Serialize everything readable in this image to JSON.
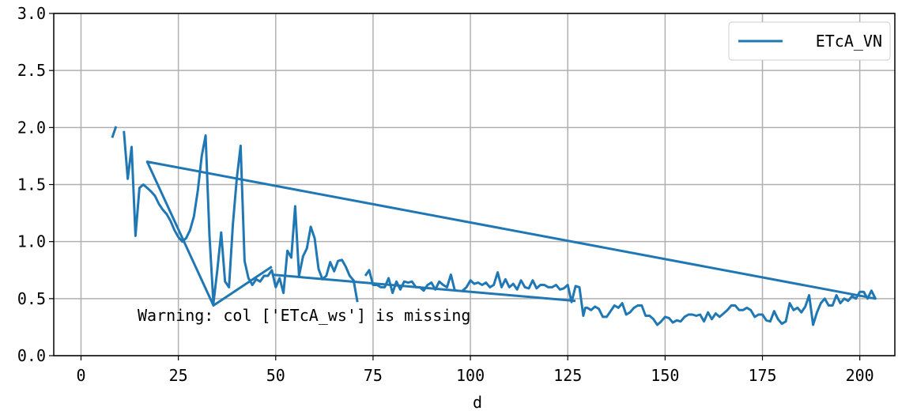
{
  "chart_data": {
    "type": "line",
    "xlabel": "d",
    "ylabel": "",
    "xlim": [
      -7,
      209
    ],
    "ylim": [
      0,
      3
    ],
    "x_ticks": [
      0,
      25,
      50,
      75,
      100,
      125,
      150,
      175,
      200
    ],
    "y_ticks": [
      0.0,
      0.5,
      1.0,
      1.5,
      2.0,
      2.5,
      3.0
    ],
    "x_tick_labels": [
      "0",
      "25",
      "50",
      "75",
      "100",
      "125",
      "150",
      "175",
      "200"
    ],
    "y_tick_labels": [
      "0.0",
      "0.5",
      "1.0",
      "1.5",
      "2.0",
      "2.5",
      "3.0"
    ],
    "grid": true,
    "legend_position": "top-right",
    "annotation": "Warning: col ['ETcA_ws'] is missing",
    "series": [
      {
        "name": "ETcA_VN",
        "color": "#1f77b4",
        "segments": [
          [
            [
              8,
              1.91
            ],
            [
              9,
              2.01
            ]
          ],
          [
            [
              11,
              1.97
            ],
            [
              12,
              1.55
            ],
            [
              13,
              1.83
            ],
            [
              14,
              1.05
            ],
            [
              15,
              1.47
            ],
            [
              16,
              1.5
            ],
            [
              17,
              1.47
            ],
            [
              18,
              1.44
            ],
            [
              19,
              1.4
            ],
            [
              20,
              1.33
            ],
            [
              21,
              1.28
            ],
            [
              22,
              1.24
            ],
            [
              23,
              1.18
            ],
            [
              24,
              1.1
            ],
            [
              25,
              1.04
            ],
            [
              26,
              1.0
            ],
            [
              27,
              1.03
            ],
            [
              28,
              1.1
            ],
            [
              29,
              1.22
            ],
            [
              30,
              1.45
            ],
            [
              31,
              1.75
            ],
            [
              32,
              1.93
            ],
            [
              33,
              1.05
            ],
            [
              34,
              0.46
            ],
            [
              35,
              0.75
            ],
            [
              36,
              1.08
            ],
            [
              37,
              0.65
            ],
            [
              38,
              0.6
            ],
            [
              39,
              1.15
            ],
            [
              40,
              1.55
            ],
            [
              41,
              1.84
            ],
            [
              42,
              0.83
            ],
            [
              43,
              0.68
            ],
            [
              44,
              0.62
            ],
            [
              45,
              0.67
            ],
            [
              46,
              0.65
            ],
            [
              47,
              0.7
            ],
            [
              48,
              0.7
            ],
            [
              49,
              0.75
            ],
            [
              50,
              0.6
            ],
            [
              51,
              0.68
            ],
            [
              52,
              0.55
            ],
            [
              53,
              0.92
            ],
            [
              54,
              0.86
            ],
            [
              55,
              1.31
            ],
            [
              56,
              0.7
            ],
            [
              57,
              0.87
            ],
            [
              58,
              0.94
            ],
            [
              59,
              1.13
            ],
            [
              60,
              1.03
            ],
            [
              61,
              0.76
            ],
            [
              62,
              0.67
            ],
            [
              63,
              0.7
            ],
            [
              64,
              0.82
            ],
            [
              65,
              0.74
            ],
            [
              66,
              0.83
            ],
            [
              67,
              0.84
            ],
            [
              68,
              0.78
            ],
            [
              69,
              0.7
            ],
            [
              70,
              0.66
            ],
            [
              71,
              0.47
            ]
          ],
          [
            [
              73,
              0.7
            ],
            [
              74,
              0.75
            ],
            [
              75,
              0.62
            ],
            [
              76,
              0.62
            ],
            [
              77,
              0.6
            ],
            [
              78,
              0.6
            ],
            [
              79,
              0.68
            ],
            [
              80,
              0.55
            ],
            [
              81,
              0.65
            ],
            [
              82,
              0.58
            ],
            [
              83,
              0.65
            ],
            [
              84,
              0.64
            ],
            [
              85,
              0.65
            ],
            [
              86,
              0.6
            ],
            [
              87,
              0.6
            ],
            [
              88,
              0.57
            ],
            [
              89,
              0.62
            ],
            [
              90,
              0.64
            ],
            [
              91,
              0.58
            ],
            [
              92,
              0.65
            ],
            [
              93,
              0.62
            ],
            [
              94,
              0.6
            ],
            [
              95,
              0.71
            ],
            [
              96,
              0.57
            ]
          ],
          [
            [
              98,
              0.57
            ],
            [
              99,
              0.6
            ],
            [
              100,
              0.66
            ],
            [
              101,
              0.63
            ],
            [
              102,
              0.64
            ],
            [
              103,
              0.62
            ],
            [
              104,
              0.64
            ],
            [
              105,
              0.6
            ],
            [
              106,
              0.62
            ],
            [
              107,
              0.73
            ],
            [
              108,
              0.6
            ],
            [
              109,
              0.67
            ],
            [
              110,
              0.6
            ],
            [
              111,
              0.63
            ],
            [
              112,
              0.58
            ],
            [
              113,
              0.66
            ],
            [
              114,
              0.6
            ],
            [
              115,
              0.59
            ],
            [
              116,
              0.66
            ],
            [
              117,
              0.59
            ],
            [
              118,
              0.62
            ],
            [
              119,
              0.62
            ],
            [
              120,
              0.6
            ],
            [
              121,
              0.6
            ],
            [
              122,
              0.62
            ],
            [
              123,
              0.58
            ],
            [
              124,
              0.59
            ],
            [
              125,
              0.62
            ],
            [
              126,
              0.47
            ],
            [
              127,
              0.61
            ],
            [
              128,
              0.6
            ],
            [
              129,
              0.35
            ],
            [
              129.5,
              0.42
            ],
            [
              130,
              0.42
            ],
            [
              131,
              0.4
            ],
            [
              132,
              0.43
            ],
            [
              133,
              0.41
            ],
            [
              134,
              0.34
            ],
            [
              135,
              0.34
            ],
            [
              136,
              0.39
            ],
            [
              137,
              0.44
            ],
            [
              138,
              0.42
            ],
            [
              139,
              0.46
            ],
            [
              140,
              0.36
            ],
            [
              141,
              0.38
            ],
            [
              142,
              0.42
            ],
            [
              143,
              0.44
            ],
            [
              144,
              0.44
            ],
            [
              145,
              0.35
            ],
            [
              146,
              0.35
            ],
            [
              147,
              0.32
            ],
            [
              148,
              0.27
            ],
            [
              149,
              0.3
            ],
            [
              150,
              0.34
            ],
            [
              151,
              0.33
            ],
            [
              152,
              0.29
            ],
            [
              153,
              0.31
            ],
            [
              154,
              0.3
            ],
            [
              155,
              0.34
            ],
            [
              156,
              0.36
            ],
            [
              157,
              0.36
            ],
            [
              158,
              0.35
            ],
            [
              159,
              0.36
            ],
            [
              160,
              0.3
            ],
            [
              161,
              0.38
            ],
            [
              162,
              0.32
            ],
            [
              163,
              0.37
            ],
            [
              164,
              0.34
            ],
            [
              165,
              0.37
            ],
            [
              166,
              0.4
            ],
            [
              167,
              0.44
            ],
            [
              168,
              0.44
            ],
            [
              169,
              0.4
            ],
            [
              170,
              0.4
            ],
            [
              171,
              0.42
            ],
            [
              172,
              0.4
            ],
            [
              173,
              0.34
            ],
            [
              174,
              0.36
            ],
            [
              175,
              0.36
            ],
            [
              176,
              0.31
            ],
            [
              177,
              0.3
            ],
            [
              178,
              0.39
            ],
            [
              179,
              0.32
            ],
            [
              180,
              0.28
            ],
            [
              181,
              0.3
            ],
            [
              182,
              0.46
            ],
            [
              183,
              0.4
            ],
            [
              184,
              0.42
            ],
            [
              185,
              0.38
            ],
            [
              186,
              0.43
            ],
            [
              187,
              0.53
            ],
            [
              188,
              0.27
            ],
            [
              189,
              0.38
            ],
            [
              190,
              0.46
            ],
            [
              191,
              0.5
            ],
            [
              192,
              0.44
            ],
            [
              193,
              0.44
            ],
            [
              194,
              0.53
            ],
            [
              195,
              0.46
            ],
            [
              196,
              0.5
            ],
            [
              197,
              0.48
            ],
            [
              198,
              0.52
            ],
            [
              199,
              0.5
            ],
            [
              200,
              0.56
            ],
            [
              201,
              0.56
            ],
            [
              202,
              0.5
            ],
            [
              203,
              0.57
            ],
            [
              204,
              0.5
            ],
            [
              17,
              1.7
            ],
            [
              34,
              0.44
            ],
            [
              49,
              0.78
            ]
          ],
          [
            [
              49,
              0.71
            ],
            [
              127,
              0.48
            ]
          ]
        ]
      }
    ]
  }
}
